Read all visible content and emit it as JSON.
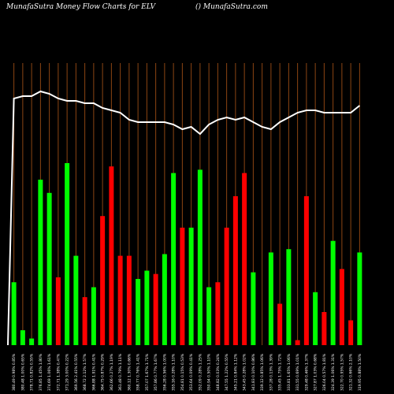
{
  "header": {
    "left": "MunafaSutra  Money Flow  Charts for ELV",
    "right": "() MunafaSutra.com"
  },
  "colors": {
    "background": "#000000",
    "grid": "#8B4513",
    "up": "#00FF00",
    "down": "#FF0000",
    "line": "#FFFFFF"
  },
  "chart_data": {
    "type": "bar",
    "title": "MunafaSutra  Money Flow  Charts for ELV",
    "categories": [
      "380.49 0.98% 0.85%",
      "380.48 1.00% 0.65%",
      "378.71 0.82% 0.55%",
      "376.85 1.45% 1.80%",
      "374.69 1.06% 1.61%",
      "372.71 1.38% 0.47%",
      "371.29 3.00% 0.22%",
      "369.56 2.41% 0.55%",
      "368.72 2.12% 1.57%",
      "366.88 1.91% 0.41%",
      "364.75 0.87% 0.29%",
      "362.66 0.27% 1.19%",
      "361.48 0.79% 1.11%",
      "360.12 1.30% 0.66%",
      "358.77 0.76% 1.41%",
      "357.07 1.67% 1.71%",
      "357.86 0.77% 1.67%",
      "356.28 0.56% 1.00%",
      "355.16 0.28% 1.10%",
      "354.81 0.15% 0.53%",
      "353.64 0.09% 0.41%",
      "352.09 0.28% 1.25%",
      "350.94 0.50% 1.10%",
      "348.82 0.03% 0.24%",
      "347.55 1.22% 0.55%",
      "345.21 0.84% 1.12%",
      "343.45 0.28% 1.02%",
      "341.83 0.10% 0.86%",
      "339.12 0.85% 1.06%",
      "337.28 0.13% 1.39%",
      "335.45 1.75% 1.72%",
      "333.81 1.65% 1.06%",
      "331.55 0.69% 1.01%",
      "329.48 0.46% 1.37%",
      "327.87 1.03% 0.68%",
      "326.04 0.57% 1.81%",
      "324.39 1.06% 1.31%",
      "322.70 0.95% 1.57%",
      "321.32 0.66% 2.10%",
      "319.95 0.88% 1.50%"
    ],
    "series": [
      {
        "values": [
          0.38,
          0.09,
          0.04,
          1.0,
          0.92,
          0.41,
          1.1,
          0.54,
          0.29,
          0.35,
          0.78,
          1.08,
          0.54,
          0.54,
          0.4,
          0.45,
          0.43,
          0.55,
          1.04,
          0.71,
          0.71,
          1.06,
          0.35,
          0.38,
          0.71,
          0.9,
          1.04,
          0.44,
          0.0,
          0.56,
          0.25,
          0.58,
          0.03,
          0.9,
          0.32,
          0.2,
          0.63,
          0.46,
          0.15,
          0.56
        ],
        "direction": [
          "up",
          "up",
          "up",
          "up",
          "up",
          "down",
          "up",
          "up",
          "down",
          "up",
          "down",
          "down",
          "down",
          "down",
          "up",
          "up",
          "down",
          "up",
          "up",
          "down",
          "up",
          "up",
          "up",
          "down",
          "down",
          "down",
          "down",
          "up",
          "up",
          "up",
          "down",
          "up",
          "down",
          "down",
          "up",
          "down",
          "up",
          "down",
          "down",
          "up"
        ]
      },
      {
        "values": [
          0.95,
          0.96,
          0.96,
          0.98,
          0.97,
          0.95,
          0.94,
          0.94,
          0.93,
          0.93,
          0.91,
          0.9,
          0.89,
          0.86,
          0.85,
          0.85,
          0.85,
          0.85,
          0.84,
          0.82,
          0.83,
          0.8,
          0.84,
          0.86,
          0.87,
          0.86,
          0.87,
          0.85,
          0.83,
          0.82,
          0.85,
          0.87,
          0.89,
          0.9,
          0.9,
          0.89,
          0.89,
          0.89,
          0.89,
          0.92
        ]
      }
    ]
  }
}
